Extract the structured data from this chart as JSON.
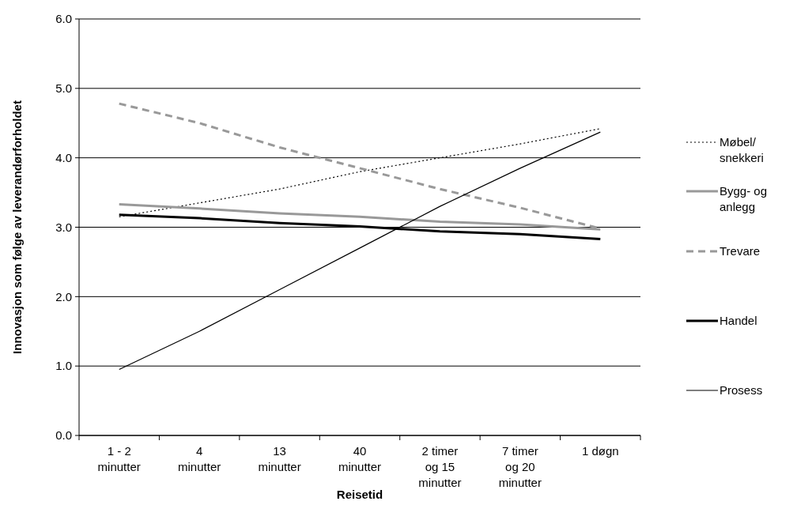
{
  "chart_data": {
    "type": "line",
    "xlabel": "Reisetid",
    "ylabel": "Innovasjon som følge av leverandørforholdet",
    "categories": [
      "1 - 2\nminutter",
      "4\nminutter",
      "13\nminutter",
      "40\nminutter",
      "2 timer\nog 15\nminutter",
      "7 timer\nog 20\nminutter",
      "1 døgn"
    ],
    "series": [
      {
        "name": "Møbel/\nsnekkeri",
        "color": "#000000",
        "line_style": "dotted",
        "values": [
          3.15,
          3.35,
          3.55,
          3.8,
          4.0,
          4.2,
          4.42
        ]
      },
      {
        "name": "Bygg- og\nanlegg",
        "color": "#999999",
        "line_style": "solid",
        "values": [
          3.33,
          3.27,
          3.2,
          3.15,
          3.08,
          3.04,
          2.97
        ]
      },
      {
        "name": "Trevare",
        "color": "#999999",
        "line_style": "dashed",
        "values": [
          4.78,
          4.5,
          4.15,
          3.85,
          3.55,
          3.28,
          2.98
        ]
      },
      {
        "name": "Handel",
        "color": "#000000",
        "line_style": "solid",
        "values": [
          3.18,
          3.13,
          3.06,
          3.01,
          2.94,
          2.9,
          2.83
        ]
      },
      {
        "name": "Prosess",
        "color": "#000000",
        "line_style": "solid",
        "values": [
          0.95,
          1.5,
          2.1,
          2.7,
          3.3,
          3.85,
          4.37
        ]
      }
    ],
    "ylim": [
      0,
      6
    ],
    "yticks": [
      {
        "value": 0,
        "label": "0.0"
      },
      {
        "value": 1,
        "label": "1.0"
      },
      {
        "value": 2,
        "label": "2.0"
      },
      {
        "value": 3,
        "label": "3.0"
      },
      {
        "value": 4,
        "label": "4.0"
      },
      {
        "value": 5,
        "label": "5.0"
      },
      {
        "value": 6,
        "label": "6.0"
      }
    ],
    "grid": "y",
    "legend": "right",
    "marker": "none"
  }
}
